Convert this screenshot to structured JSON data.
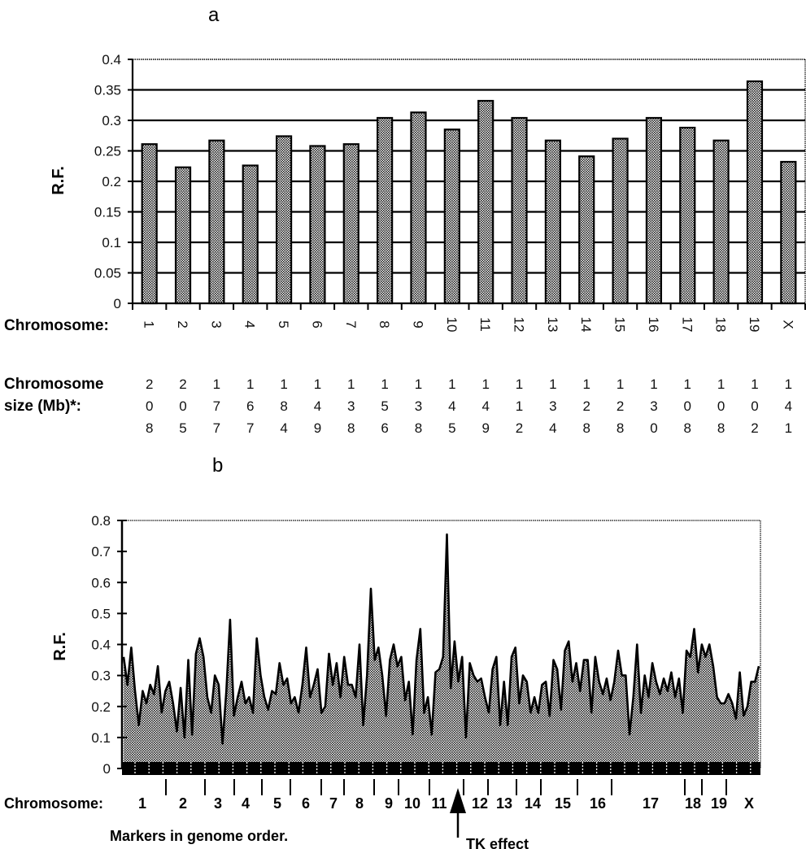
{
  "chart_data": [
    {
      "panel_label": "a",
      "type": "bar",
      "ylabel": "R.F.",
      "xlabel": "Chromosome:",
      "ylim": [
        0,
        0.4
      ],
      "yticks": [
        "0",
        "0.05",
        "0.1",
        "0.15",
        "0.2",
        "0.25",
        "0.3",
        "0.35",
        "0.4"
      ],
      "grid": true,
      "categories": [
        "1",
        "2",
        "3",
        "4",
        "5",
        "6",
        "7",
        "8",
        "9",
        "10",
        "11",
        "12",
        "13",
        "14",
        "15",
        "16",
        "17",
        "18",
        "19",
        "X"
      ],
      "values": [
        0.261,
        0.223,
        0.267,
        0.226,
        0.274,
        0.258,
        0.261,
        0.304,
        0.313,
        0.285,
        0.332,
        0.304,
        0.267,
        0.241,
        0.27,
        0.304,
        0.288,
        0.267,
        0.364,
        0.232
      ],
      "size_label_line1": "Chromosome",
      "size_label_line2": "size (Mb)*:",
      "chromosome_sizes": [
        "208",
        "205",
        "177",
        "167",
        "184",
        "149",
        "138",
        "156",
        "138",
        "145",
        "149",
        "112",
        "134",
        "128",
        "128",
        "130",
        "108",
        "108",
        "102",
        "141"
      ]
    },
    {
      "panel_label": "b",
      "type": "area",
      "ylabel": "R.F.",
      "ylim": [
        0,
        0.8
      ],
      "yticks": [
        "0",
        "0.1",
        "0.2",
        "0.3",
        "0.4",
        "0.5",
        "0.6",
        "0.7",
        "0.8"
      ],
      "grid": false,
      "xlabel": "Markers in genome order.",
      "chromosome_axis_label": "Chromosome:",
      "chromosomes": [
        "1",
        "2",
        "3",
        "4",
        "5",
        "6",
        "7",
        "8",
        "9",
        "10",
        "11",
        "12",
        "13",
        "14",
        "15",
        "16",
        "17",
        "18",
        "19",
        "X"
      ],
      "annotation": "TK effect",
      "values": [
        0.36,
        0.27,
        0.39,
        0.25,
        0.14,
        0.25,
        0.21,
        0.27,
        0.24,
        0.33,
        0.18,
        0.25,
        0.28,
        0.21,
        0.12,
        0.26,
        0.1,
        0.35,
        0.11,
        0.37,
        0.42,
        0.36,
        0.23,
        0.18,
        0.3,
        0.27,
        0.08,
        0.25,
        0.48,
        0.17,
        0.23,
        0.28,
        0.21,
        0.23,
        0.18,
        0.42,
        0.3,
        0.23,
        0.19,
        0.25,
        0.24,
        0.34,
        0.27,
        0.29,
        0.21,
        0.23,
        0.18,
        0.27,
        0.39,
        0.23,
        0.27,
        0.32,
        0.18,
        0.2,
        0.37,
        0.27,
        0.34,
        0.23,
        0.36,
        0.27,
        0.27,
        0.23,
        0.4,
        0.14,
        0.3,
        0.58,
        0.35,
        0.39,
        0.3,
        0.17,
        0.35,
        0.4,
        0.33,
        0.36,
        0.22,
        0.28,
        0.11,
        0.35,
        0.45,
        0.18,
        0.23,
        0.11,
        0.31,
        0.32,
        0.36,
        0.755,
        0.26,
        0.41,
        0.28,
        0.36,
        0.1,
        0.34,
        0.3,
        0.28,
        0.29,
        0.23,
        0.18,
        0.32,
        0.36,
        0.14,
        0.28,
        0.14,
        0.36,
        0.39,
        0.21,
        0.3,
        0.28,
        0.18,
        0.23,
        0.18,
        0.27,
        0.28,
        0.17,
        0.35,
        0.32,
        0.19,
        0.38,
        0.41,
        0.28,
        0.34,
        0.25,
        0.35,
        0.35,
        0.18,
        0.36,
        0.28,
        0.24,
        0.29,
        0.22,
        0.28,
        0.38,
        0.3,
        0.3,
        0.11,
        0.23,
        0.4,
        0.18,
        0.3,
        0.23,
        0.34,
        0.28,
        0.24,
        0.29,
        0.25,
        0.31,
        0.23,
        0.29,
        0.18,
        0.38,
        0.36,
        0.45,
        0.31,
        0.4,
        0.36,
        0.4,
        0.33,
        0.23,
        0.21,
        0.21,
        0.24,
        0.21,
        0.16,
        0.31,
        0.17,
        0.2,
        0.28,
        0.28,
        0.33
      ]
    }
  ],
  "colors": {
    "ink": "#000000",
    "fill_pattern": "#8a8a8a",
    "background": "#ffffff"
  }
}
